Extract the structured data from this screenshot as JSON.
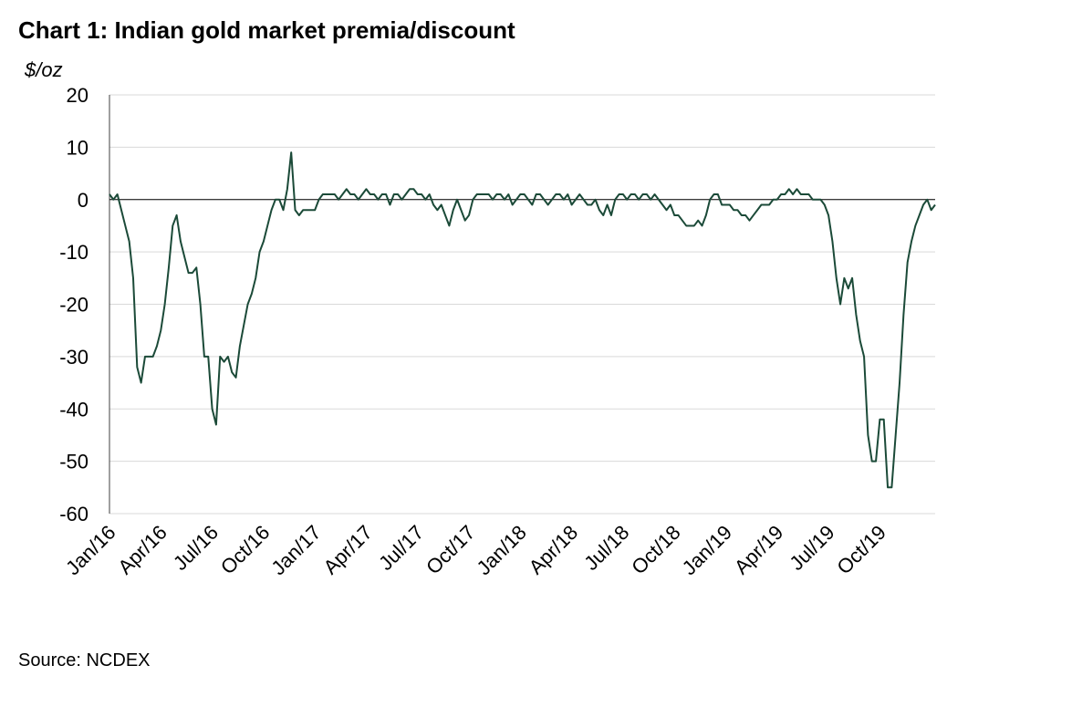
{
  "chart_data": {
    "type": "line",
    "title": "Chart 1: Indian gold market premia/discount",
    "y_label": "$/oz",
    "source": "Source: NCDEX",
    "categories": [
      "Jan/16",
      null,
      null,
      null,
      null,
      null,
      null,
      null,
      null,
      null,
      null,
      null,
      null,
      "Apr/16",
      null,
      null,
      null,
      null,
      null,
      null,
      null,
      null,
      null,
      null,
      null,
      null,
      "Jul/16",
      null,
      null,
      null,
      null,
      null,
      null,
      null,
      null,
      null,
      null,
      null,
      null,
      "Oct/16",
      null,
      null,
      null,
      null,
      null,
      null,
      null,
      null,
      null,
      null,
      null,
      null,
      "Jan/17",
      null,
      null,
      null,
      null,
      null,
      null,
      null,
      null,
      null,
      null,
      null,
      null,
      "Apr/17",
      null,
      null,
      null,
      null,
      null,
      null,
      null,
      null,
      null,
      null,
      null,
      null,
      "Jul/17",
      null,
      null,
      null,
      null,
      null,
      null,
      null,
      null,
      null,
      null,
      null,
      null,
      "Oct/17",
      null,
      null,
      null,
      null,
      null,
      null,
      null,
      null,
      null,
      null,
      null,
      null,
      "Jan/18",
      null,
      null,
      null,
      null,
      null,
      null,
      null,
      null,
      null,
      null,
      null,
      null,
      "Apr/18",
      null,
      null,
      null,
      null,
      null,
      null,
      null,
      null,
      null,
      null,
      null,
      null,
      "Jul/18",
      null,
      null,
      null,
      null,
      null,
      null,
      null,
      null,
      null,
      null,
      null,
      null,
      "Oct/18",
      null,
      null,
      null,
      null,
      null,
      null,
      null,
      null,
      null,
      null,
      null,
      null,
      "Jan/19",
      null,
      null,
      null,
      null,
      null,
      null,
      null,
      null,
      null,
      null,
      null,
      null,
      "Apr/19",
      null,
      null,
      null,
      null,
      null,
      null,
      null,
      null,
      null,
      null,
      null,
      null,
      "Jul/19",
      null,
      null,
      null,
      null,
      null,
      null,
      null,
      null,
      null,
      null,
      null,
      null,
      "Oct/19",
      null,
      null,
      null,
      null,
      null,
      null,
      null,
      null,
      null,
      null,
      null,
      null,
      null,
      null
    ],
    "values": [
      1,
      0,
      1,
      -2,
      -5,
      -8,
      -15,
      -32,
      -35,
      -30,
      -30,
      -30,
      -28,
      -25,
      -20,
      -13,
      -5,
      -3,
      -8,
      -11,
      -14,
      -14,
      -13,
      -20,
      -30,
      -30,
      -40,
      -43,
      -30,
      -31,
      -30,
      -33,
      -34,
      -28,
      -24,
      -20,
      -18,
      -15,
      -10,
      -8,
      -5,
      -2,
      0,
      0,
      -2,
      2,
      9,
      -2,
      -3,
      -2,
      -2,
      -2,
      -2,
      0,
      1,
      1,
      1,
      1,
      0,
      1,
      2,
      1,
      1,
      0,
      1,
      2,
      1,
      1,
      0,
      1,
      1,
      -1,
      1,
      1,
      0,
      1,
      2,
      2,
      1,
      1,
      0,
      1,
      -1,
      -2,
      -1,
      -3,
      -5,
      -2,
      0,
      -2,
      -4,
      -3,
      0,
      1,
      1,
      1,
      1,
      0,
      1,
      1,
      0,
      1,
      -1,
      0,
      1,
      1,
      0,
      -1,
      1,
      1,
      0,
      -1,
      0,
      1,
      1,
      0,
      1,
      -1,
      0,
      1,
      0,
      -1,
      -1,
      0,
      -2,
      -3,
      -1,
      -3,
      0,
      1,
      1,
      0,
      1,
      1,
      0,
      1,
      1,
      0,
      1,
      0,
      -1,
      -2,
      -1,
      -3,
      -3,
      -4,
      -5,
      -5,
      -5,
      -4,
      -5,
      -3,
      0,
      1,
      1,
      -1,
      -1,
      -1,
      -2,
      -2,
      -3,
      -3,
      -4,
      -3,
      -2,
      -1,
      -1,
      -1,
      0,
      0,
      1,
      1,
      2,
      1,
      2,
      1,
      1,
      1,
      0,
      0,
      0,
      -1,
      -3,
      -8,
      -15,
      -20,
      -15,
      -17,
      -15,
      -22,
      -27,
      -30,
      -45,
      -50,
      -50,
      -42,
      -42,
      -55,
      -55,
      -45,
      -35,
      -22,
      -12,
      -8,
      -5,
      -3,
      -1,
      0,
      -2,
      -1
    ],
    "color": "#1b4a38",
    "ylim": [
      -60,
      20
    ],
    "yticks": [
      -60,
      -50,
      -40,
      -30,
      -20,
      -10,
      0,
      10,
      20
    ],
    "grid": true
  }
}
